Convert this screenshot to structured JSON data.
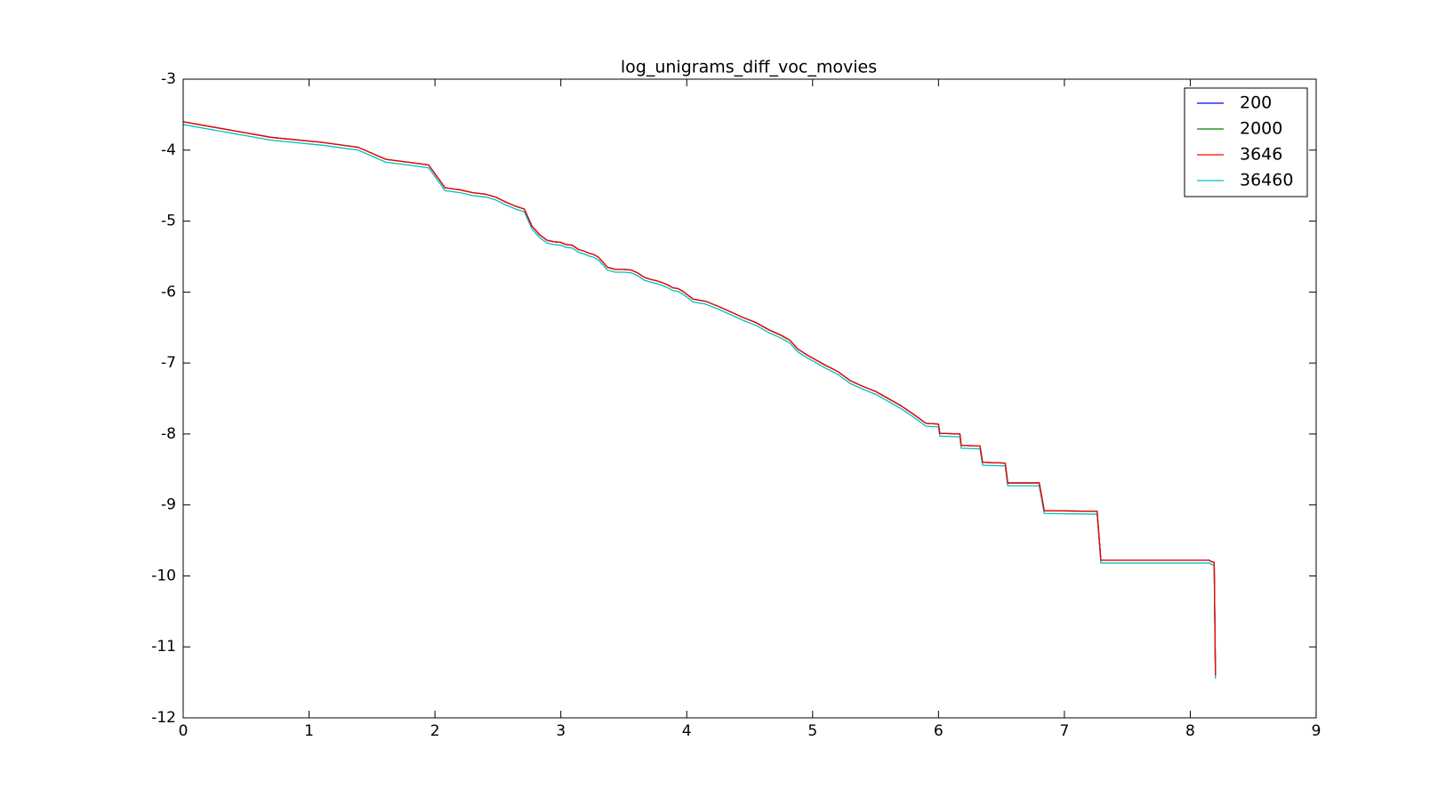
{
  "chart_data": {
    "type": "line",
    "title": "log_unigrams_diff_voc_movies",
    "x": [
      0,
      0.7,
      1.1,
      1.39,
      1.61,
      1.79,
      1.95,
      2.08,
      2.2,
      2.3,
      2.4,
      2.48,
      2.56,
      2.64,
      2.71,
      2.77,
      2.83,
      2.89,
      2.94,
      3.0,
      3.04,
      3.09,
      3.14,
      3.18,
      3.22,
      3.26,
      3.3,
      3.37,
      3.43,
      3.5,
      3.56,
      3.61,
      3.66,
      3.71,
      3.76,
      3.81,
      3.85,
      3.89,
      3.93,
      3.97,
      4.0,
      4.05,
      4.15,
      4.25,
      4.35,
      4.45,
      4.55,
      4.65,
      4.75,
      4.82,
      4.88,
      4.95,
      5.0,
      5.1,
      5.2,
      5.3,
      5.4,
      5.5,
      5.6,
      5.7,
      5.8,
      5.9,
      6.0,
      6.01,
      6.17,
      6.18,
      6.33,
      6.35,
      6.53,
      6.55,
      6.8,
      6.84,
      7.26,
      7.29,
      8.15,
      8.17,
      8.19,
      8.2
    ],
    "series": [
      {
        "name": "200",
        "color": "#0000ff",
        "values": [
          -3.6,
          -3.82,
          -3.89,
          -3.96,
          -4.13,
          -4.17,
          -4.21,
          -4.53,
          -4.56,
          -4.6,
          -4.62,
          -4.66,
          -4.73,
          -4.79,
          -4.83,
          -5.07,
          -5.19,
          -5.27,
          -5.29,
          -5.3,
          -5.33,
          -5.34,
          -5.4,
          -5.42,
          -5.45,
          -5.47,
          -5.51,
          -5.65,
          -5.68,
          -5.68,
          -5.69,
          -5.73,
          -5.79,
          -5.82,
          -5.84,
          -5.87,
          -5.9,
          -5.94,
          -5.95,
          -5.99,
          -6.03,
          -6.1,
          -6.13,
          -6.2,
          -6.28,
          -6.36,
          -6.43,
          -6.53,
          -6.61,
          -6.68,
          -6.8,
          -6.88,
          -6.93,
          -7.03,
          -7.12,
          -7.25,
          -7.33,
          -7.4,
          -7.5,
          -7.6,
          -7.72,
          -7.85,
          -7.86,
          -7.99,
          -8.0,
          -8.16,
          -8.17,
          -8.4,
          -8.41,
          -8.69,
          -8.69,
          -9.08,
          -9.09,
          -9.78,
          -9.78,
          -9.8,
          -9.81,
          -11.4
        ]
      },
      {
        "name": "2000",
        "color": "#008000",
        "values": [
          -3.6,
          -3.82,
          -3.89,
          -3.96,
          -4.13,
          -4.17,
          -4.21,
          -4.53,
          -4.56,
          -4.6,
          -4.62,
          -4.66,
          -4.73,
          -4.79,
          -4.83,
          -5.07,
          -5.19,
          -5.27,
          -5.29,
          -5.3,
          -5.33,
          -5.34,
          -5.4,
          -5.42,
          -5.45,
          -5.47,
          -5.51,
          -5.65,
          -5.68,
          -5.68,
          -5.69,
          -5.73,
          -5.79,
          -5.82,
          -5.84,
          -5.87,
          -5.9,
          -5.94,
          -5.95,
          -5.99,
          -6.03,
          -6.1,
          -6.13,
          -6.2,
          -6.28,
          -6.36,
          -6.43,
          -6.53,
          -6.61,
          -6.68,
          -6.8,
          -6.88,
          -6.93,
          -7.03,
          -7.12,
          -7.25,
          -7.33,
          -7.4,
          -7.5,
          -7.6,
          -7.72,
          -7.85,
          -7.86,
          -7.99,
          -8.0,
          -8.16,
          -8.17,
          -8.4,
          -8.41,
          -8.69,
          -8.69,
          -9.08,
          -9.09,
          -9.78,
          -9.78,
          -9.8,
          -9.81,
          -11.4
        ]
      },
      {
        "name": "3646",
        "color": "#ff0000",
        "values": [
          -3.6,
          -3.82,
          -3.89,
          -3.96,
          -4.13,
          -4.17,
          -4.21,
          -4.53,
          -4.56,
          -4.6,
          -4.62,
          -4.66,
          -4.73,
          -4.79,
          -4.83,
          -5.07,
          -5.19,
          -5.27,
          -5.29,
          -5.3,
          -5.33,
          -5.34,
          -5.4,
          -5.42,
          -5.45,
          -5.47,
          -5.51,
          -5.65,
          -5.68,
          -5.68,
          -5.69,
          -5.73,
          -5.79,
          -5.82,
          -5.84,
          -5.87,
          -5.9,
          -5.94,
          -5.95,
          -5.99,
          -6.03,
          -6.1,
          -6.13,
          -6.2,
          -6.28,
          -6.36,
          -6.43,
          -6.53,
          -6.61,
          -6.68,
          -6.8,
          -6.88,
          -6.93,
          -7.03,
          -7.12,
          -7.25,
          -7.33,
          -7.4,
          -7.5,
          -7.6,
          -7.72,
          -7.85,
          -7.86,
          -7.99,
          -8.0,
          -8.16,
          -8.17,
          -8.4,
          -8.41,
          -8.69,
          -8.69,
          -9.08,
          -9.09,
          -9.78,
          -9.78,
          -9.8,
          -9.81,
          -11.4
        ]
      },
      {
        "name": "36460",
        "color": "#00bfbf",
        "values": [
          -3.64,
          -3.86,
          -3.93,
          -4.0,
          -4.17,
          -4.21,
          -4.25,
          -4.57,
          -4.6,
          -4.64,
          -4.66,
          -4.7,
          -4.77,
          -4.83,
          -4.87,
          -5.11,
          -5.23,
          -5.31,
          -5.33,
          -5.34,
          -5.37,
          -5.38,
          -5.44,
          -5.46,
          -5.49,
          -5.51,
          -5.55,
          -5.69,
          -5.72,
          -5.72,
          -5.73,
          -5.77,
          -5.83,
          -5.86,
          -5.88,
          -5.91,
          -5.94,
          -5.98,
          -5.99,
          -6.03,
          -6.07,
          -6.14,
          -6.17,
          -6.24,
          -6.32,
          -6.4,
          -6.47,
          -6.57,
          -6.65,
          -6.72,
          -6.84,
          -6.92,
          -6.97,
          -7.07,
          -7.16,
          -7.29,
          -7.37,
          -7.44,
          -7.54,
          -7.64,
          -7.76,
          -7.89,
          -7.9,
          -8.03,
          -8.04,
          -8.2,
          -8.21,
          -8.44,
          -8.45,
          -8.73,
          -8.73,
          -9.12,
          -9.13,
          -9.82,
          -9.82,
          -9.84,
          -9.85,
          -11.45
        ]
      }
    ],
    "xlim": [
      0,
      9
    ],
    "xticks": [
      0,
      1,
      2,
      3,
      4,
      5,
      6,
      7,
      8,
      9
    ],
    "ylim": [
      -12,
      -3
    ],
    "yticks": [
      -12,
      -11,
      -10,
      -9,
      -8,
      -7,
      -6,
      -5,
      -4,
      -3
    ],
    "legend": "upper right"
  }
}
